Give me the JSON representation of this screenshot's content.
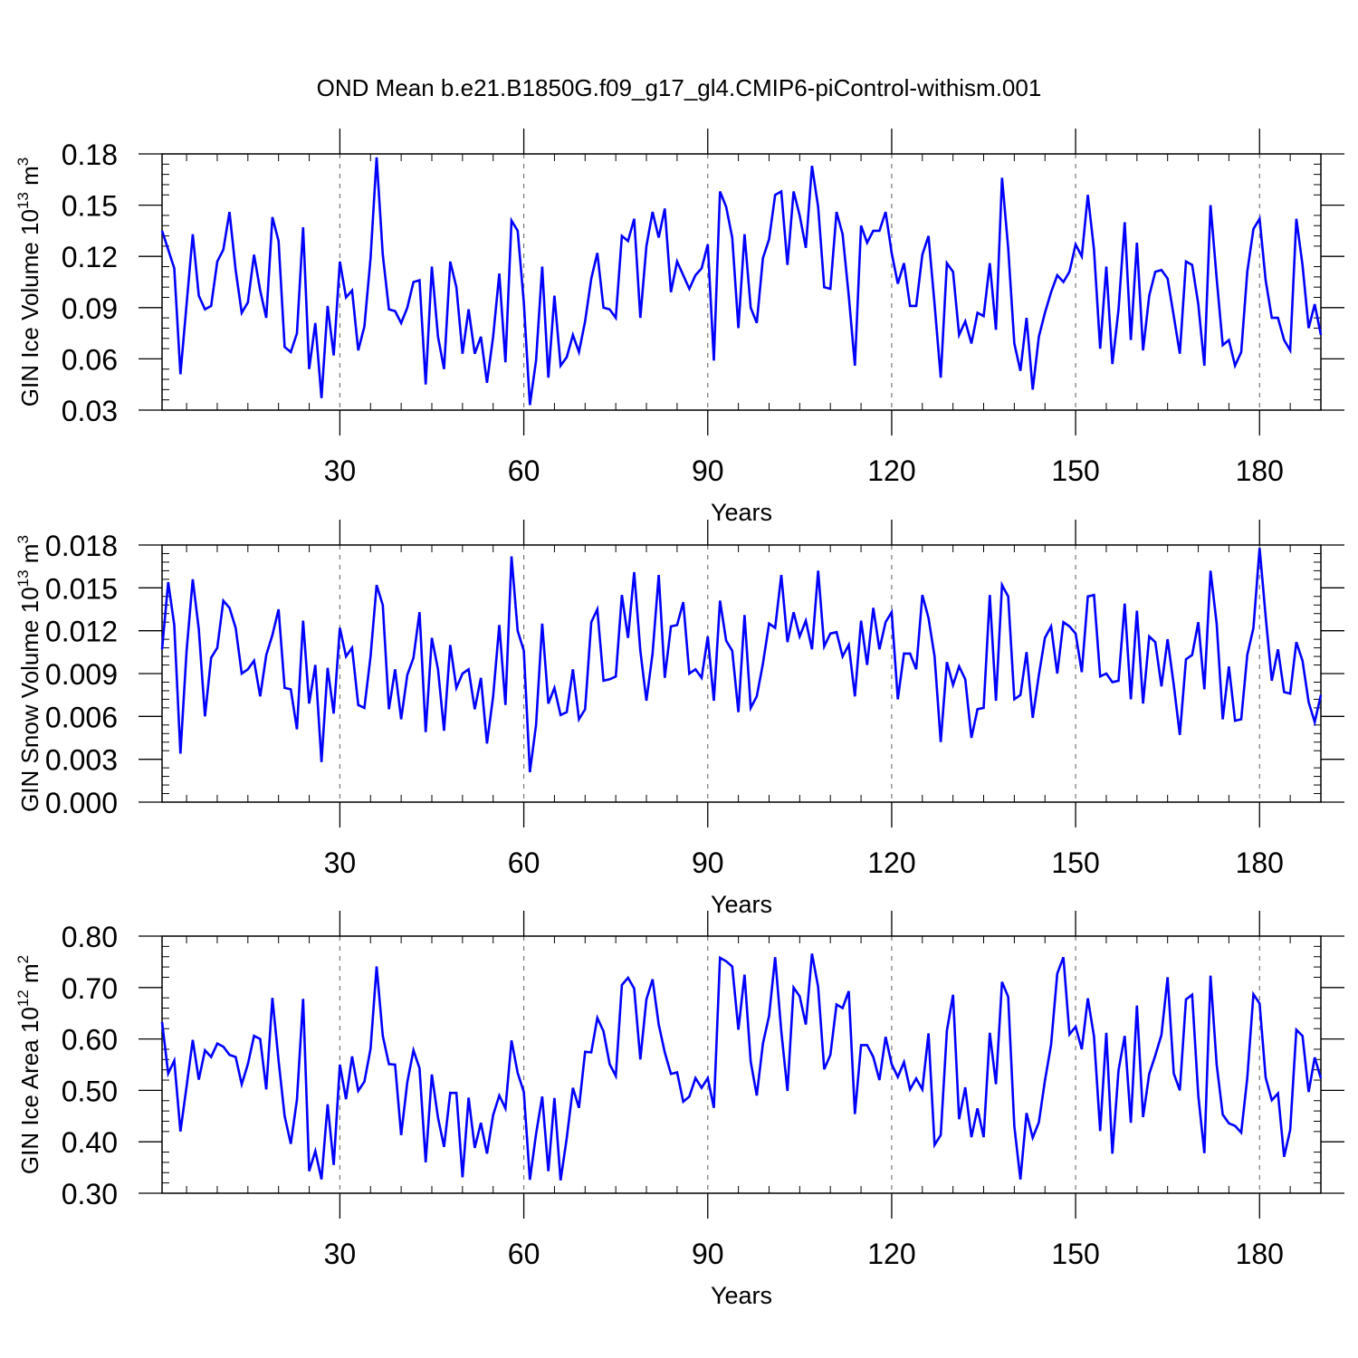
{
  "figure_title": "OND Mean b.e21.B1850G.f09_g17_gl4.CMIP6-piControl-withism.001",
  "series_color": "#0000ff",
  "chart_data": [
    {
      "type": "line",
      "xlabel": "Years",
      "ylabel": {
        "base": "GIN Ice Volume 10",
        "exp1": "13",
        "unit": " m",
        "exp2": "3"
      },
      "xlim": [
        1,
        190
      ],
      "ylim": [
        0.03,
        0.18
      ],
      "xticks": [
        30,
        60,
        90,
        120,
        150,
        180
      ],
      "yticks": [
        "0.03",
        "0.06",
        "0.09",
        "0.12",
        "0.15",
        "0.18"
      ],
      "grid": "vertical dashed at major x ticks",
      "x_start": 1,
      "values": [
        0.135,
        0.124,
        0.113,
        0.051,
        0.092,
        0.133,
        0.097,
        0.089,
        0.091,
        0.117,
        0.124,
        0.146,
        0.112,
        0.087,
        0.093,
        0.121,
        0.1,
        0.084,
        0.143,
        0.129,
        0.067,
        0.064,
        0.075,
        0.137,
        0.054,
        0.081,
        0.037,
        0.091,
        0.062,
        0.117,
        0.096,
        0.1,
        0.065,
        0.079,
        0.119,
        0.178,
        0.121,
        0.089,
        0.088,
        0.081,
        0.09,
        0.105,
        0.106,
        0.045,
        0.114,
        0.073,
        0.054,
        0.117,
        0.102,
        0.063,
        0.089,
        0.063,
        0.073,
        0.046,
        0.073,
        0.11,
        0.058,
        0.141,
        0.135,
        0.093,
        0.033,
        0.059,
        0.114,
        0.049,
        0.097,
        0.056,
        0.061,
        0.074,
        0.064,
        0.082,
        0.107,
        0.122,
        0.09,
        0.089,
        0.084,
        0.132,
        0.129,
        0.142,
        0.084,
        0.126,
        0.146,
        0.131,
        0.148,
        0.099,
        0.117,
        0.109,
        0.101,
        0.109,
        0.113,
        0.127,
        0.059,
        0.158,
        0.149,
        0.131,
        0.078,
        0.133,
        0.09,
        0.081,
        0.119,
        0.13,
        0.156,
        0.158,
        0.115,
        0.158,
        0.144,
        0.125,
        0.173,
        0.149,
        0.102,
        0.101,
        0.146,
        0.133,
        0.097,
        0.056,
        0.138,
        0.128,
        0.135,
        0.135,
        0.146,
        0.122,
        0.104,
        0.116,
        0.091,
        0.091,
        0.121,
        0.132,
        0.092,
        0.049,
        0.116,
        0.111,
        0.074,
        0.082,
        0.069,
        0.087,
        0.085,
        0.116,
        0.077,
        0.166,
        0.125,
        0.069,
        0.053,
        0.084,
        0.042,
        0.073,
        0.087,
        0.099,
        0.109,
        0.105,
        0.111,
        0.127,
        0.12,
        0.156,
        0.124,
        0.066,
        0.114,
        0.057,
        0.089,
        0.14,
        0.071,
        0.128,
        0.065,
        0.097,
        0.111,
        0.112,
        0.107,
        0.085,
        0.063,
        0.117,
        0.115,
        0.092,
        0.056,
        0.15,
        0.107,
        0.068,
        0.071,
        0.056,
        0.064,
        0.111,
        0.136,
        0.142,
        0.106,
        0.084,
        0.084,
        0.071,
        0.065,
        0.142,
        0.115,
        0.078,
        0.092,
        0.074
      ]
    },
    {
      "type": "line",
      "xlabel": "Years",
      "ylabel": {
        "base": "GIN Snow Volume 10",
        "exp1": "13",
        "unit": " m",
        "exp2": "3"
      },
      "xlim": [
        1,
        190
      ],
      "ylim": [
        0.0,
        0.018
      ],
      "xticks": [
        30,
        60,
        90,
        120,
        150,
        180
      ],
      "yticks": [
        "0.000",
        "0.003",
        "0.006",
        "0.009",
        "0.012",
        "0.015",
        "0.018"
      ],
      "grid": "vertical dashed at major x ticks",
      "x_start": 1,
      "values": [
        0.0107,
        0.0154,
        0.0124,
        0.0034,
        0.0106,
        0.0156,
        0.0121,
        0.006,
        0.0101,
        0.0108,
        0.0141,
        0.0136,
        0.0122,
        0.009,
        0.0093,
        0.0099,
        0.0074,
        0.0103,
        0.0117,
        0.0135,
        0.008,
        0.0079,
        0.0051,
        0.0127,
        0.0069,
        0.0096,
        0.0028,
        0.0094,
        0.0062,
        0.0122,
        0.0102,
        0.0108,
        0.0068,
        0.0066,
        0.0102,
        0.0152,
        0.0138,
        0.0065,
        0.0093,
        0.0058,
        0.0089,
        0.0101,
        0.0133,
        0.0049,
        0.0115,
        0.0093,
        0.005,
        0.011,
        0.008,
        0.009,
        0.0093,
        0.0065,
        0.0087,
        0.0041,
        0.0074,
        0.0124,
        0.0068,
        0.0172,
        0.012,
        0.0106,
        0.0021,
        0.0054,
        0.0125,
        0.0069,
        0.008,
        0.0061,
        0.0063,
        0.0093,
        0.0058,
        0.0065,
        0.0126,
        0.0135,
        0.0085,
        0.0086,
        0.0088,
        0.0145,
        0.0115,
        0.0161,
        0.0106,
        0.0071,
        0.0104,
        0.0159,
        0.0087,
        0.0123,
        0.0124,
        0.014,
        0.009,
        0.0093,
        0.0087,
        0.0116,
        0.0071,
        0.0141,
        0.0113,
        0.0106,
        0.0063,
        0.0131,
        0.0066,
        0.0074,
        0.0097,
        0.0125,
        0.0122,
        0.0159,
        0.0112,
        0.0133,
        0.0116,
        0.0127,
        0.0107,
        0.0162,
        0.0109,
        0.0118,
        0.0119,
        0.0102,
        0.011,
        0.0074,
        0.0127,
        0.0096,
        0.0136,
        0.0107,
        0.0126,
        0.0133,
        0.0072,
        0.0104,
        0.0104,
        0.0093,
        0.0145,
        0.0129,
        0.0102,
        0.0042,
        0.0098,
        0.0082,
        0.0095,
        0.0086,
        0.0045,
        0.0065,
        0.0066,
        0.0145,
        0.0071,
        0.0152,
        0.0144,
        0.0072,
        0.0075,
        0.0105,
        0.0059,
        0.0089,
        0.0115,
        0.0123,
        0.009,
        0.0126,
        0.0123,
        0.0118,
        0.0091,
        0.0144,
        0.0145,
        0.0088,
        0.009,
        0.0084,
        0.0085,
        0.0139,
        0.0072,
        0.0134,
        0.0069,
        0.0116,
        0.0112,
        0.0081,
        0.0114,
        0.0082,
        0.0047,
        0.01,
        0.0103,
        0.0126,
        0.0079,
        0.0162,
        0.0125,
        0.0058,
        0.0095,
        0.0057,
        0.0058,
        0.0103,
        0.0122,
        0.0178,
        0.013,
        0.0085,
        0.0107,
        0.0077,
        0.0076,
        0.0112,
        0.0099,
        0.007,
        0.0056,
        0.0075
      ]
    },
    {
      "type": "line",
      "xlabel": "Years",
      "ylabel": {
        "base": "GIN Ice Area 10",
        "exp1": "12",
        "unit": " m",
        "exp2": "2"
      },
      "xlim": [
        1,
        190
      ],
      "ylim": [
        0.3,
        0.8
      ],
      "xticks": [
        30,
        60,
        90,
        120,
        150,
        180
      ],
      "yticks": [
        "0.30",
        "0.40",
        "0.50",
        "0.60",
        "0.70",
        "0.80"
      ],
      "grid": "vertical dashed at major x ticks",
      "x_start": 1,
      "values": [
        0.633,
        0.533,
        0.558,
        0.42,
        0.508,
        0.598,
        0.521,
        0.578,
        0.565,
        0.591,
        0.585,
        0.569,
        0.565,
        0.512,
        0.551,
        0.606,
        0.6,
        0.502,
        0.68,
        0.558,
        0.45,
        0.396,
        0.482,
        0.678,
        0.343,
        0.382,
        0.327,
        0.473,
        0.355,
        0.55,
        0.483,
        0.566,
        0.499,
        0.517,
        0.581,
        0.741,
        0.606,
        0.551,
        0.55,
        0.413,
        0.516,
        0.578,
        0.543,
        0.36,
        0.531,
        0.447,
        0.39,
        0.495,
        0.495,
        0.331,
        0.486,
        0.388,
        0.437,
        0.377,
        0.452,
        0.49,
        0.465,
        0.597,
        0.534,
        0.497,
        0.326,
        0.415,
        0.488,
        0.343,
        0.485,
        0.325,
        0.407,
        0.505,
        0.466,
        0.575,
        0.574,
        0.641,
        0.615,
        0.551,
        0.528,
        0.705,
        0.719,
        0.698,
        0.56,
        0.677,
        0.716,
        0.628,
        0.574,
        0.532,
        0.535,
        0.478,
        0.488,
        0.524,
        0.505,
        0.524,
        0.466,
        0.758,
        0.751,
        0.741,
        0.618,
        0.725,
        0.556,
        0.49,
        0.591,
        0.645,
        0.759,
        0.615,
        0.499,
        0.7,
        0.683,
        0.628,
        0.766,
        0.701,
        0.541,
        0.569,
        0.667,
        0.66,
        0.693,
        0.454,
        0.588,
        0.588,
        0.565,
        0.52,
        0.604,
        0.551,
        0.526,
        0.555,
        0.502,
        0.523,
        0.502,
        0.611,
        0.394,
        0.413,
        0.616,
        0.686,
        0.444,
        0.506,
        0.409,
        0.465,
        0.409,
        0.612,
        0.512,
        0.711,
        0.682,
        0.43,
        0.327,
        0.456,
        0.408,
        0.438,
        0.519,
        0.589,
        0.727,
        0.759,
        0.609,
        0.624,
        0.58,
        0.679,
        0.605,
        0.421,
        0.612,
        0.377,
        0.539,
        0.606,
        0.437,
        0.665,
        0.448,
        0.532,
        0.568,
        0.608,
        0.72,
        0.533,
        0.5,
        0.677,
        0.686,
        0.49,
        0.378,
        0.723,
        0.55,
        0.453,
        0.436,
        0.431,
        0.418,
        0.524,
        0.687,
        0.669,
        0.525,
        0.481,
        0.494,
        0.371,
        0.423,
        0.618,
        0.606,
        0.497,
        0.564,
        0.523
      ]
    }
  ]
}
